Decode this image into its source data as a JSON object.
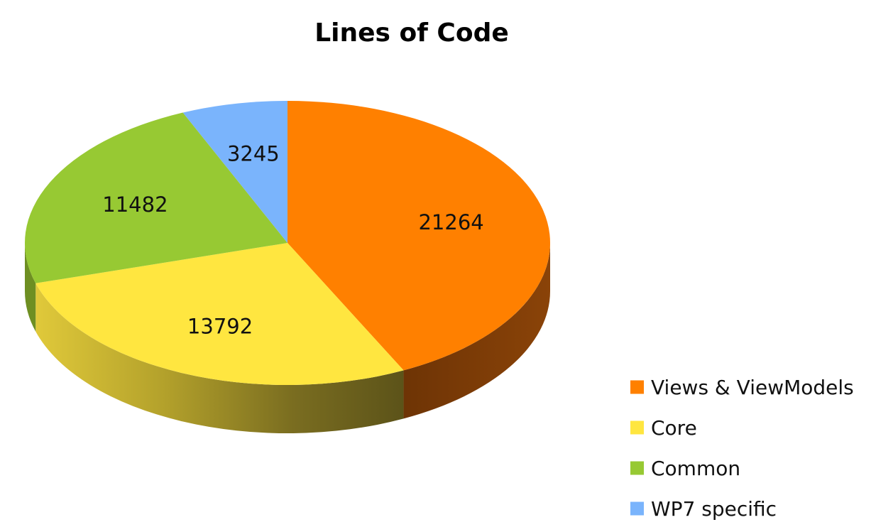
{
  "chart_data": {
    "type": "pie",
    "title": "Lines of Code",
    "categories": [
      "Views & ViewModels",
      "Core",
      "Common",
      "WP7 specific"
    ],
    "values": [
      21264,
      13792,
      11482,
      3245
    ],
    "colors": [
      "#ff8000",
      "#ffe640",
      "#97c933",
      "#7ab4fc"
    ],
    "labels": [
      "21264",
      "13792",
      "11482",
      "3245"
    ],
    "legend_position": "bottom-right",
    "style": "3d"
  }
}
